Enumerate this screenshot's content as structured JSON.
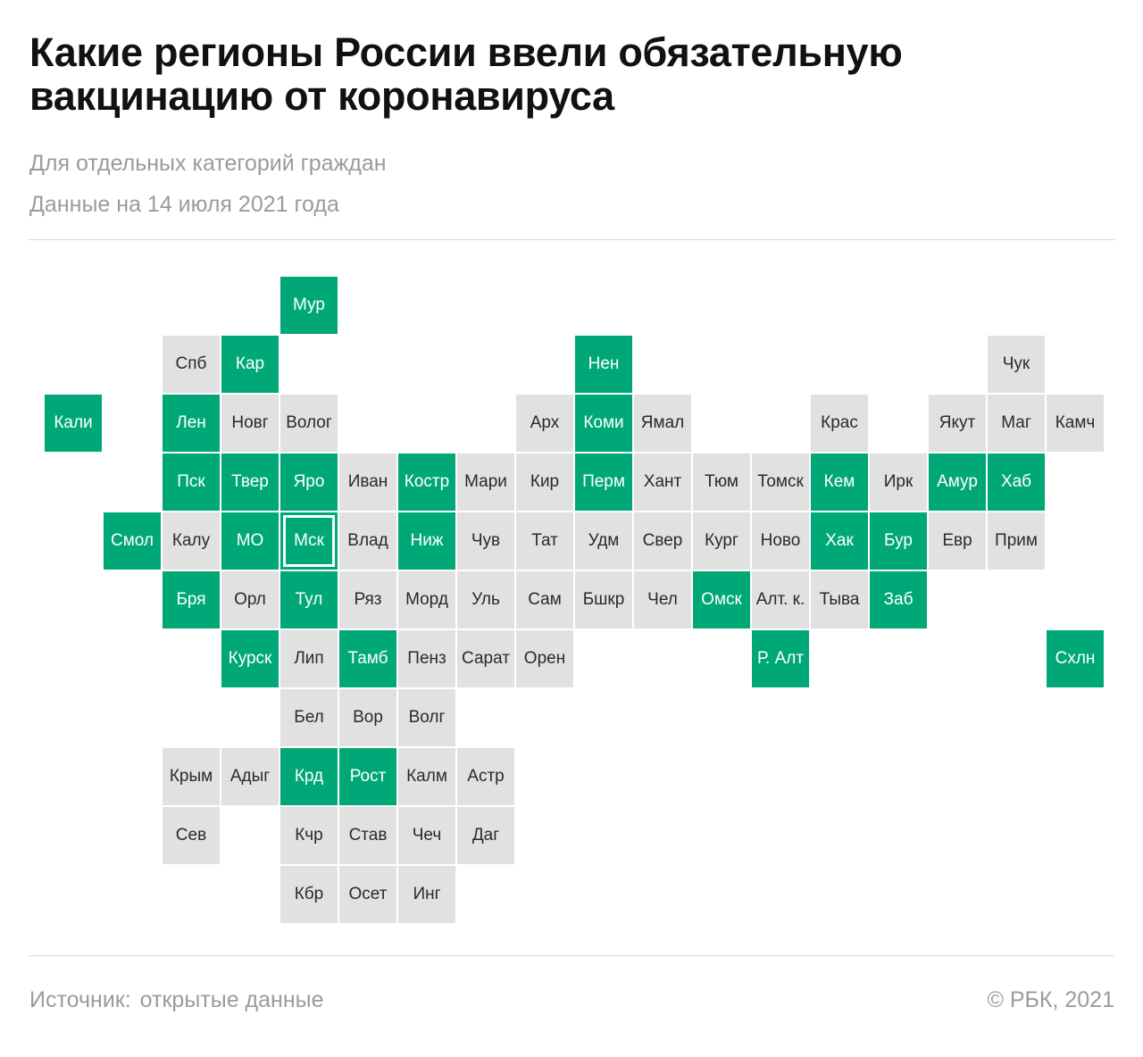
{
  "header": {
    "title_line1": "Какие регионы России ввели обязательную",
    "title_line2": "вакцинацию от коронавируса",
    "subtitle": "Для отдельных категорий граждан",
    "date_note": "Данные на 14 июля 2021 года"
  },
  "legend_colors": {
    "mandatory": "#00a878",
    "other": "#e1e1e1"
  },
  "regions": [
    {
      "label": "Мур",
      "row": 0,
      "col": 4,
      "mandatory": true
    },
    {
      "label": "Спб",
      "row": 1,
      "col": 2,
      "mandatory": false
    },
    {
      "label": "Кар",
      "row": 1,
      "col": 3,
      "mandatory": true
    },
    {
      "label": "Нен",
      "row": 1,
      "col": 9,
      "mandatory": true
    },
    {
      "label": "Чук",
      "row": 1,
      "col": 16,
      "mandatory": false
    },
    {
      "label": "Кали",
      "row": 2,
      "col": 0,
      "mandatory": true
    },
    {
      "label": "Лен",
      "row": 2,
      "col": 2,
      "mandatory": true
    },
    {
      "label": "Новг",
      "row": 2,
      "col": 3,
      "mandatory": false
    },
    {
      "label": "Волог",
      "row": 2,
      "col": 4,
      "mandatory": false
    },
    {
      "label": "Арх",
      "row": 2,
      "col": 8,
      "mandatory": false
    },
    {
      "label": "Коми",
      "row": 2,
      "col": 9,
      "mandatory": true
    },
    {
      "label": "Ямал",
      "row": 2,
      "col": 10,
      "mandatory": false
    },
    {
      "label": "Крас",
      "row": 2,
      "col": 13,
      "mandatory": false
    },
    {
      "label": "Якут",
      "row": 2,
      "col": 15,
      "mandatory": false
    },
    {
      "label": "Маг",
      "row": 2,
      "col": 16,
      "mandatory": false
    },
    {
      "label": "Камч",
      "row": 2,
      "col": 17,
      "mandatory": false
    },
    {
      "label": "Пск",
      "row": 3,
      "col": 2,
      "mandatory": true
    },
    {
      "label": "Твер",
      "row": 3,
      "col": 3,
      "mandatory": true
    },
    {
      "label": "Яро",
      "row": 3,
      "col": 4,
      "mandatory": true
    },
    {
      "label": "Иван",
      "row": 3,
      "col": 5,
      "mandatory": false
    },
    {
      "label": "Костр",
      "row": 3,
      "col": 6,
      "mandatory": true
    },
    {
      "label": "Мари",
      "row": 3,
      "col": 7,
      "mandatory": false
    },
    {
      "label": "Кир",
      "row": 3,
      "col": 8,
      "mandatory": false
    },
    {
      "label": "Перм",
      "row": 3,
      "col": 9,
      "mandatory": true
    },
    {
      "label": "Хант",
      "row": 3,
      "col": 10,
      "mandatory": false
    },
    {
      "label": "Тюм",
      "row": 3,
      "col": 11,
      "mandatory": false
    },
    {
      "label": "Томск",
      "row": 3,
      "col": 12,
      "mandatory": false
    },
    {
      "label": "Кем",
      "row": 3,
      "col": 13,
      "mandatory": true
    },
    {
      "label": "Ирк",
      "row": 3,
      "col": 14,
      "mandatory": false
    },
    {
      "label": "Амур",
      "row": 3,
      "col": 15,
      "mandatory": true
    },
    {
      "label": "Хаб",
      "row": 3,
      "col": 16,
      "mandatory": true
    },
    {
      "label": "Смол",
      "row": 4,
      "col": 1,
      "mandatory": true
    },
    {
      "label": "Калу",
      "row": 4,
      "col": 2,
      "mandatory": false
    },
    {
      "label": "МО",
      "row": 4,
      "col": 3,
      "mandatory": true
    },
    {
      "label": "Мск",
      "row": 4,
      "col": 4,
      "mandatory": true,
      "capital": true
    },
    {
      "label": "Влад",
      "row": 4,
      "col": 5,
      "mandatory": false
    },
    {
      "label": "Ниж",
      "row": 4,
      "col": 6,
      "mandatory": true
    },
    {
      "label": "Чув",
      "row": 4,
      "col": 7,
      "mandatory": false
    },
    {
      "label": "Тат",
      "row": 4,
      "col": 8,
      "mandatory": false
    },
    {
      "label": "Удм",
      "row": 4,
      "col": 9,
      "mandatory": false
    },
    {
      "label": "Свер",
      "row": 4,
      "col": 10,
      "mandatory": false
    },
    {
      "label": "Кург",
      "row": 4,
      "col": 11,
      "mandatory": false
    },
    {
      "label": "Ново",
      "row": 4,
      "col": 12,
      "mandatory": false
    },
    {
      "label": "Хак",
      "row": 4,
      "col": 13,
      "mandatory": true
    },
    {
      "label": "Бур",
      "row": 4,
      "col": 14,
      "mandatory": true
    },
    {
      "label": "Евр",
      "row": 4,
      "col": 15,
      "mandatory": false
    },
    {
      "label": "Прим",
      "row": 4,
      "col": 16,
      "mandatory": false
    },
    {
      "label": "Бря",
      "row": 5,
      "col": 2,
      "mandatory": true
    },
    {
      "label": "Орл",
      "row": 5,
      "col": 3,
      "mandatory": false
    },
    {
      "label": "Тул",
      "row": 5,
      "col": 4,
      "mandatory": true
    },
    {
      "label": "Ряз",
      "row": 5,
      "col": 5,
      "mandatory": false
    },
    {
      "label": "Морд",
      "row": 5,
      "col": 6,
      "mandatory": false
    },
    {
      "label": "Уль",
      "row": 5,
      "col": 7,
      "mandatory": false
    },
    {
      "label": "Сам",
      "row": 5,
      "col": 8,
      "mandatory": false
    },
    {
      "label": "Бшкр",
      "row": 5,
      "col": 9,
      "mandatory": false
    },
    {
      "label": "Чел",
      "row": 5,
      "col": 10,
      "mandatory": false
    },
    {
      "label": "Омск",
      "row": 5,
      "col": 11,
      "mandatory": true
    },
    {
      "label": "Алт. к.",
      "row": 5,
      "col": 12,
      "mandatory": false
    },
    {
      "label": "Тыва",
      "row": 5,
      "col": 13,
      "mandatory": false
    },
    {
      "label": "Заб",
      "row": 5,
      "col": 14,
      "mandatory": true
    },
    {
      "label": "Курск",
      "row": 6,
      "col": 3,
      "mandatory": true
    },
    {
      "label": "Лип",
      "row": 6,
      "col": 4,
      "mandatory": false
    },
    {
      "label": "Тамб",
      "row": 6,
      "col": 5,
      "mandatory": true
    },
    {
      "label": "Пенз",
      "row": 6,
      "col": 6,
      "mandatory": false
    },
    {
      "label": "Сарат",
      "row": 6,
      "col": 7,
      "mandatory": false
    },
    {
      "label": "Орен",
      "row": 6,
      "col": 8,
      "mandatory": false
    },
    {
      "label": "Р. Алт",
      "row": 6,
      "col": 12,
      "mandatory": true
    },
    {
      "label": "Схлн",
      "row": 6,
      "col": 17,
      "mandatory": true
    },
    {
      "label": "Бел",
      "row": 7,
      "col": 4,
      "mandatory": false
    },
    {
      "label": "Вор",
      "row": 7,
      "col": 5,
      "mandatory": false
    },
    {
      "label": "Волг",
      "row": 7,
      "col": 6,
      "mandatory": false
    },
    {
      "label": "Крым",
      "row": 8,
      "col": 2,
      "mandatory": false
    },
    {
      "label": "Адыг",
      "row": 8,
      "col": 3,
      "mandatory": false
    },
    {
      "label": "Крд",
      "row": 8,
      "col": 4,
      "mandatory": true
    },
    {
      "label": "Рост",
      "row": 8,
      "col": 5,
      "mandatory": true
    },
    {
      "label": "Калм",
      "row": 8,
      "col": 6,
      "mandatory": false
    },
    {
      "label": "Астр",
      "row": 8,
      "col": 7,
      "mandatory": false
    },
    {
      "label": "Сев",
      "row": 9,
      "col": 2,
      "mandatory": false
    },
    {
      "label": "Кчр",
      "row": 9,
      "col": 4,
      "mandatory": false
    },
    {
      "label": "Став",
      "row": 9,
      "col": 5,
      "mandatory": false
    },
    {
      "label": "Чеч",
      "row": 9,
      "col": 6,
      "mandatory": false
    },
    {
      "label": "Даг",
      "row": 9,
      "col": 7,
      "mandatory": false
    },
    {
      "label": "Кбр",
      "row": 10,
      "col": 4,
      "mandatory": false
    },
    {
      "label": "Осет",
      "row": 10,
      "col": 5,
      "mandatory": false
    },
    {
      "label": "Инг",
      "row": 10,
      "col": 6,
      "mandatory": false
    }
  ],
  "footer": {
    "source_label": "Источник:",
    "source_value": "открытые данные",
    "copyright": "© РБК, 2021"
  }
}
